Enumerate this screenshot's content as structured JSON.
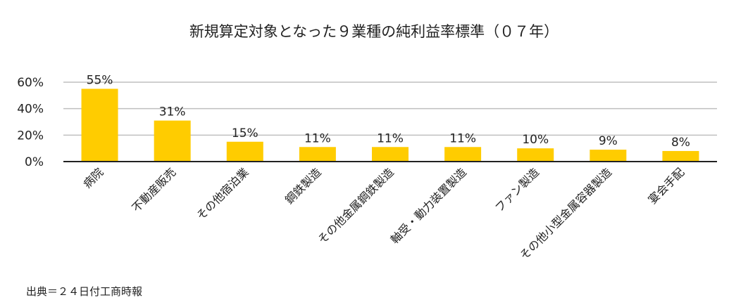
{
  "chart_data": {
    "type": "bar",
    "title": "新規算定対象となった９業種の純利益率標準（０７年）",
    "categories": [
      "病院",
      "不動産販売",
      "その他宿泊業",
      "鋼鉄製造",
      "その他金属鋼鉄製造",
      "軸受・動力装置製造",
      "ファン製造",
      "その他小型金属容器製造",
      "宴会手配"
    ],
    "values": [
      55,
      31,
      15,
      11,
      11,
      11,
      10,
      9,
      8
    ],
    "data_labels": [
      "55%",
      "31%",
      "15%",
      "11%",
      "11%",
      "11%",
      "10%",
      "9%",
      "8%"
    ],
    "yticks": [
      {
        "value": 0,
        "label": "0%"
      },
      {
        "value": 20,
        "label": "20%"
      },
      {
        "value": 40,
        "label": "40%"
      },
      {
        "value": 60,
        "label": "60%"
      }
    ],
    "ylim": [
      0,
      60
    ],
    "grid": true,
    "xlabel": "",
    "ylabel": "",
    "bar_color": "#FFCC00",
    "grid_color": "#bfbfbf"
  },
  "source": "出典＝２４日付工商時報"
}
